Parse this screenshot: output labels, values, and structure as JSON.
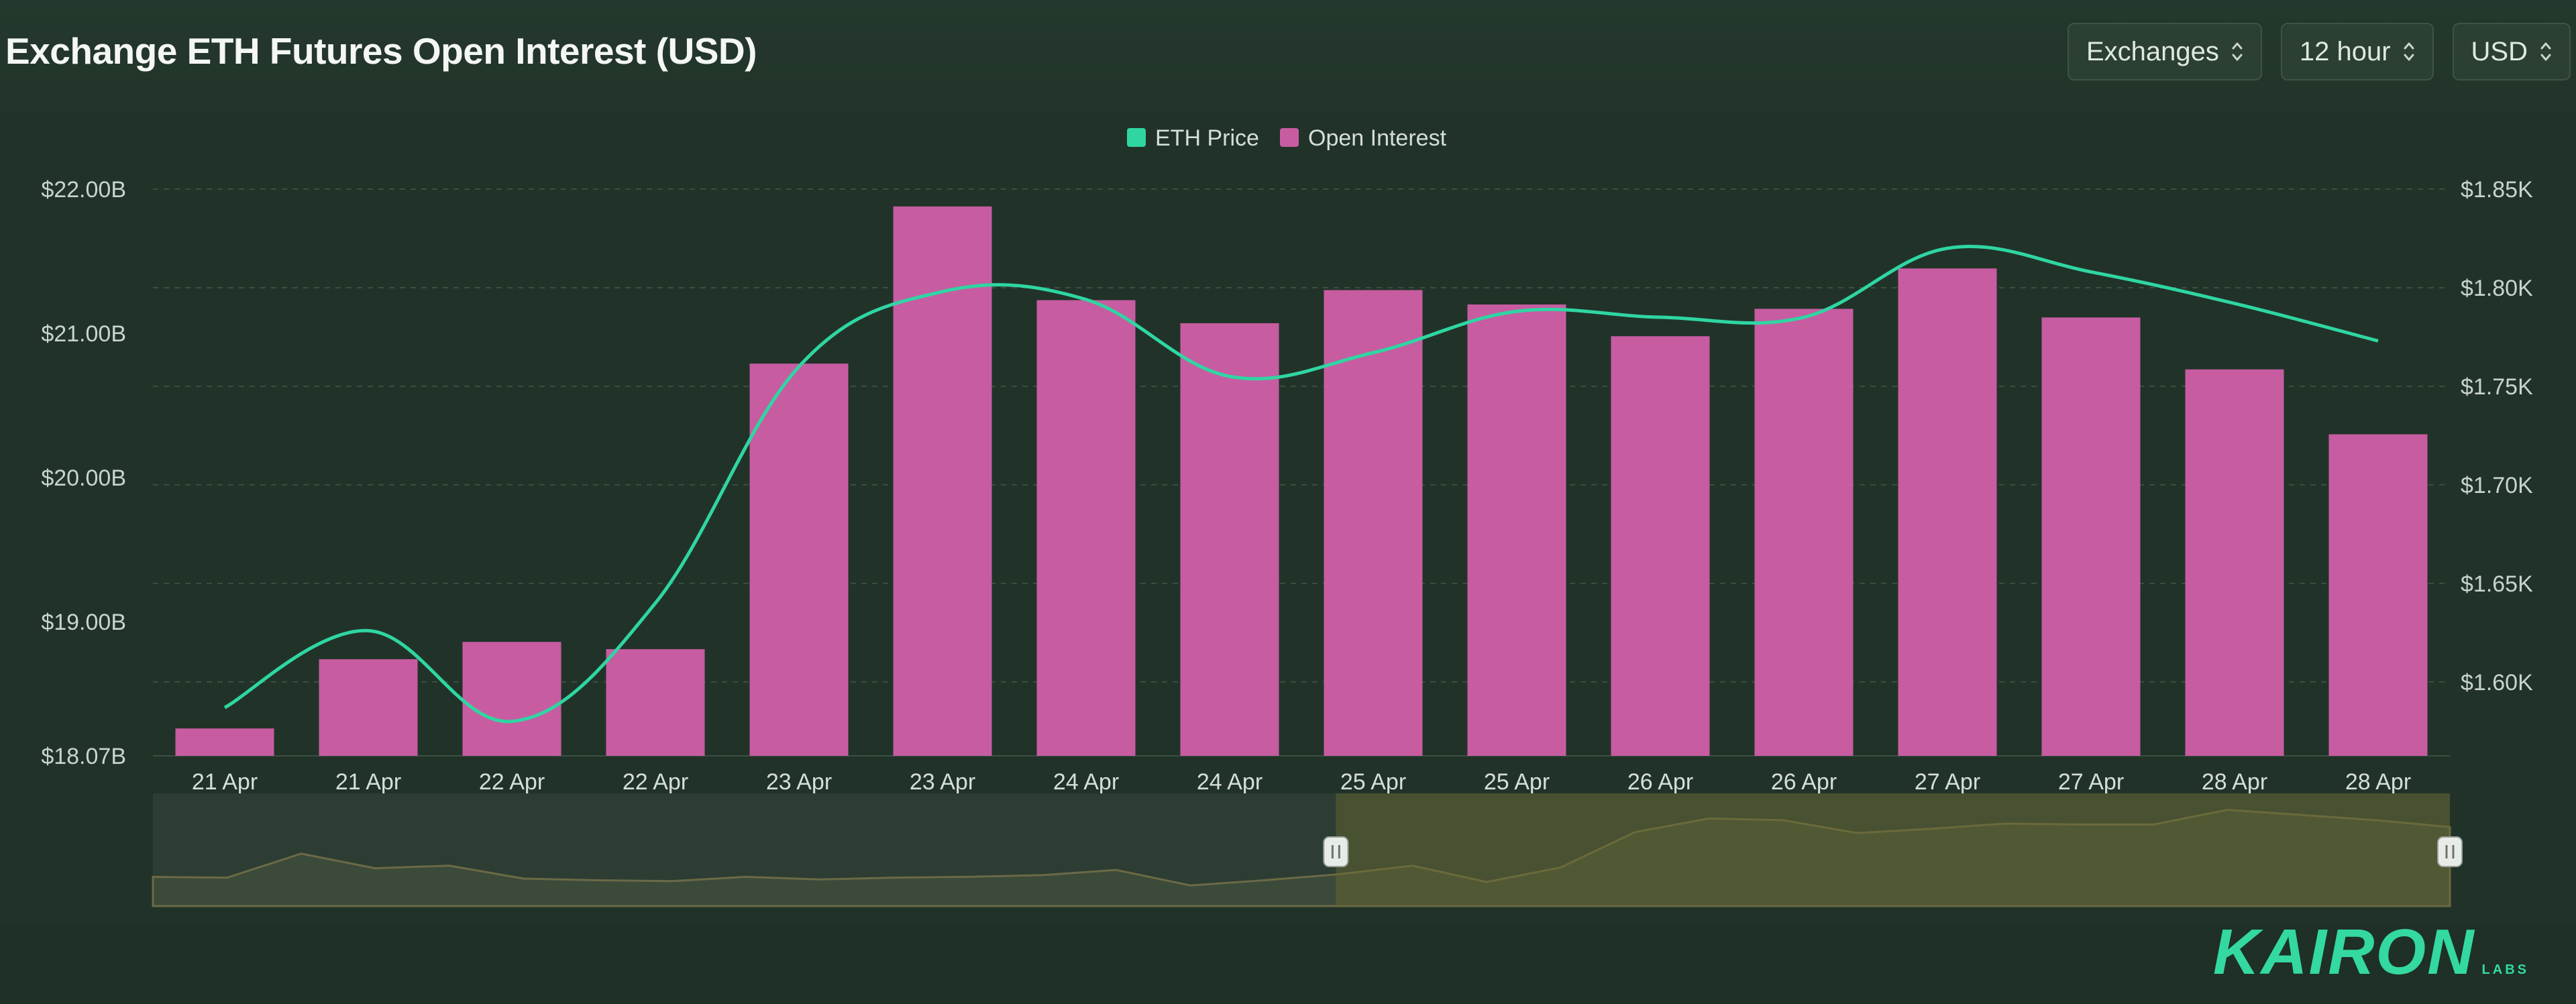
{
  "title": "Exchange ETH Futures Open Interest (USD)",
  "controls": [
    {
      "label": "Exchanges"
    },
    {
      "label": "12 hour"
    },
    {
      "label": "USD"
    }
  ],
  "colors": {
    "price": "#2fd6a2",
    "open_interest": "#c75ca1",
    "navigator_fill": "#4a4a36"
  },
  "chart_data": {
    "type": "bar",
    "title": "Exchange ETH Futures Open Interest (USD)",
    "categories": [
      "21 Apr",
      "21 Apr",
      "22 Apr",
      "22 Apr",
      "23 Apr",
      "23 Apr",
      "24 Apr",
      "24 Apr",
      "25 Apr",
      "25 Apr",
      "26 Apr",
      "26 Apr",
      "27 Apr",
      "27 Apr",
      "28 Apr",
      "28 Apr"
    ],
    "legend": [
      "ETH Price",
      "Open Interest"
    ],
    "legend_position": "top-center",
    "grid": true,
    "series": [
      {
        "name": "Open Interest",
        "type": "bar",
        "axis": "left",
        "values": [
          18.26,
          18.74,
          18.86,
          18.81,
          20.79,
          21.88,
          21.23,
          21.07,
          21.3,
          21.2,
          20.98,
          21.17,
          21.45,
          21.11,
          20.75,
          20.3
        ]
      },
      {
        "name": "ETH Price",
        "type": "line",
        "axis": "right",
        "values": [
          1.587,
          1.626,
          1.58,
          1.64,
          1.76,
          1.798,
          1.794,
          1.755,
          1.767,
          1.788,
          1.785,
          1.785,
          1.82,
          1.808,
          1.792,
          1.773
        ]
      }
    ],
    "y_left": {
      "ticks": [
        "$22.00B",
        "$21.00B",
        "$20.00B",
        "$19.00B",
        "$18.07B"
      ],
      "tick_values": [
        22,
        21,
        20,
        19,
        18.07
      ],
      "range": [
        18.07,
        22.0
      ],
      "unit": "B"
    },
    "y_right": {
      "ticks": [
        "$1.85K",
        "$1.80K",
        "$1.75K",
        "$1.70K",
        "$1.65K",
        "$1.60K"
      ],
      "tick_values": [
        1.85,
        1.8,
        1.75,
        1.7,
        1.65,
        1.6
      ],
      "range": [
        1.5625,
        1.85
      ],
      "unit": "K"
    },
    "navigator": {
      "values": [
        0.2,
        0.19,
        0.47,
        0.3,
        0.33,
        0.18,
        0.16,
        0.15,
        0.2,
        0.17,
        0.19,
        0.2,
        0.22,
        0.28,
        0.1,
        0.16,
        0.23,
        0.33,
        0.14,
        0.31,
        0.72,
        0.88,
        0.86,
        0.71,
        0.76,
        0.82,
        0.81,
        0.81,
        0.98,
        0.92,
        0.86,
        0.78
      ],
      "selection": [
        0.515,
        1.0
      ]
    }
  },
  "brand": {
    "name": "KAIRON",
    "sub": "LABS"
  }
}
